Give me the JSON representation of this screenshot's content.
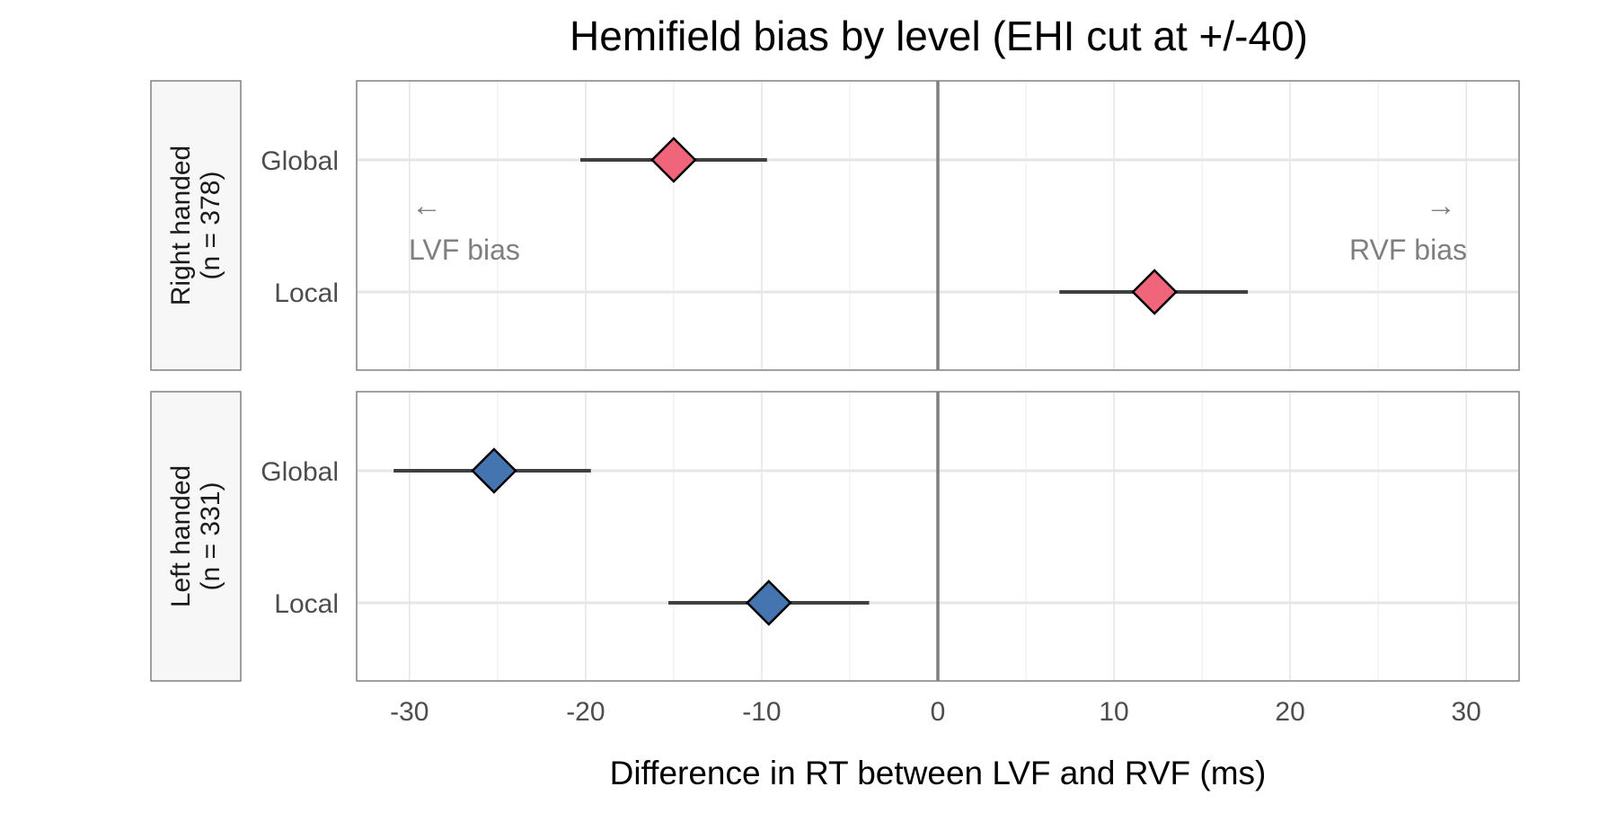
{
  "chart_data": {
    "type": "scatter",
    "title": "Hemifield bias by level (EHI cut at +/-40)",
    "xlabel": "Difference in RT between LVF and RVF (ms)",
    "ylabel": "",
    "xlim": [
      -33,
      33
    ],
    "xticks": [
      -30,
      -20,
      -10,
      0,
      10,
      20,
      30
    ],
    "tick_labels": [
      "-30",
      "-20",
      "-10",
      "0",
      "10",
      "20",
      "30"
    ],
    "reference_line_x": 0,
    "grid": true,
    "categories": [
      "Global",
      "Local"
    ],
    "annotations": {
      "left_arrow": "←",
      "left_text": "LVF bias",
      "right_arrow": "→",
      "right_text": "RVF bias"
    },
    "panels": [
      {
        "strip_line1": "Right handed",
        "strip_line2": "(n = 378)",
        "color": "#f0657a",
        "points": [
          {
            "level": "Global",
            "estimate": -15.0,
            "lower": -20.3,
            "upper": -9.7
          },
          {
            "level": "Local",
            "estimate": 12.3,
            "lower": 6.9,
            "upper": 17.6
          }
        ]
      },
      {
        "strip_line1": "Left handed",
        "strip_line2": "(n = 331)",
        "color": "#4575b0",
        "points": [
          {
            "level": "Global",
            "estimate": -25.2,
            "lower": -30.9,
            "upper": -19.7
          },
          {
            "level": "Local",
            "estimate": -9.6,
            "lower": -15.3,
            "upper": -3.9
          }
        ]
      }
    ]
  }
}
